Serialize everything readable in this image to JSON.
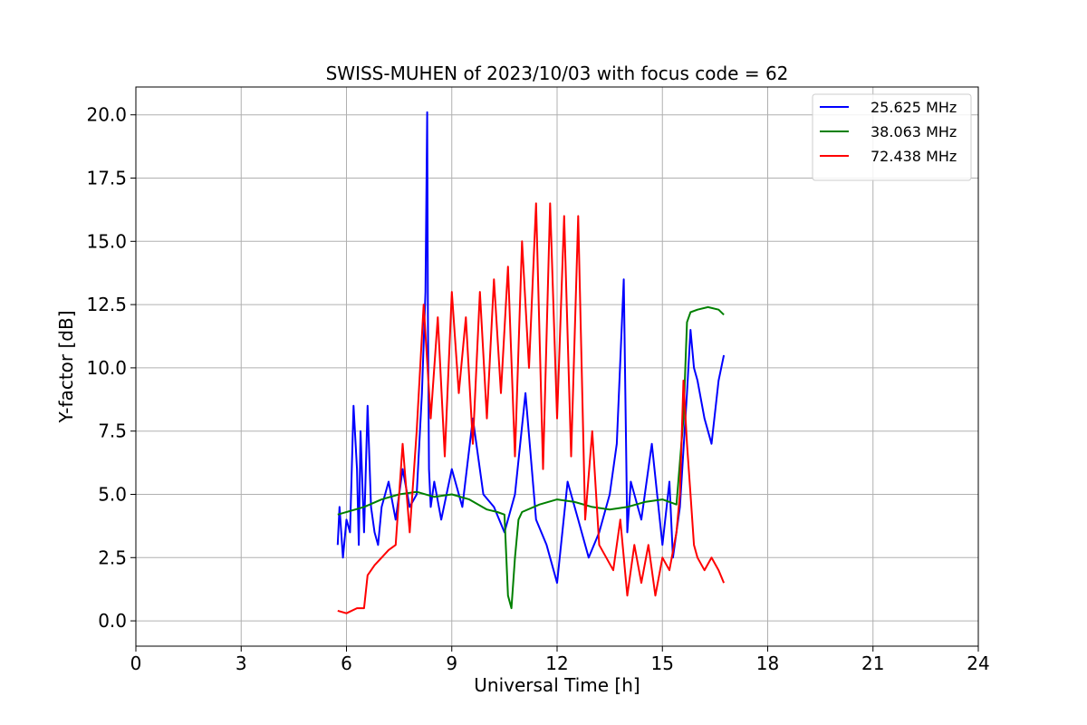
{
  "chart_data": {
    "type": "line",
    "title": "SWISS-MUHEN of 2023/10/03 with focus code = 62",
    "xlabel": "Universal Time [h]",
    "ylabel": "Y-factor [dB]",
    "xlim": [
      0,
      24
    ],
    "ylim": [
      -1,
      21.1
    ],
    "xticks": [
      0,
      3,
      6,
      9,
      12,
      15,
      18,
      21,
      24
    ],
    "xtick_labels": [
      "0",
      "3",
      "6",
      "9",
      "12",
      "15",
      "18",
      "21",
      "24"
    ],
    "yticks": [
      0,
      2.5,
      5,
      7.5,
      10,
      12.5,
      15,
      17.5,
      20
    ],
    "ytick_labels": [
      "0.0",
      "2.5",
      "5.0",
      "7.5",
      "10.0",
      "12.5",
      "15.0",
      "17.5",
      "20.0"
    ],
    "grid": true,
    "legend_position": "top-right",
    "series": [
      {
        "name": "25.625 MHz",
        "color": "#0000ff",
        "x": [
          5.75,
          5.8,
          5.9,
          6.0,
          6.1,
          6.2,
          6.3,
          6.35,
          6.4,
          6.5,
          6.6,
          6.7,
          6.8,
          6.9,
          7.0,
          7.2,
          7.4,
          7.6,
          7.8,
          8.0,
          8.15,
          8.25,
          8.3,
          8.32,
          8.35,
          8.4,
          8.5,
          8.7,
          9.0,
          9.3,
          9.6,
          9.9,
          10.2,
          10.5,
          10.8,
          11.1,
          11.4,
          11.7,
          12.0,
          12.3,
          12.6,
          12.9,
          13.2,
          13.5,
          13.7,
          13.9,
          14.0,
          14.1,
          14.4,
          14.7,
          15.0,
          15.2,
          15.3,
          15.5,
          15.7,
          15.8,
          15.9,
          16.0,
          16.2,
          16.4,
          16.6,
          16.75
        ],
        "y": [
          3.0,
          4.5,
          2.5,
          4.0,
          3.5,
          8.5,
          6.0,
          3.0,
          7.5,
          3.5,
          8.5,
          4.5,
          3.5,
          3.0,
          4.5,
          5.5,
          4.0,
          6.0,
          4.5,
          5.0,
          9.0,
          13.0,
          20.1,
          12.0,
          6.0,
          4.5,
          5.5,
          4.0,
          6.0,
          4.5,
          8.0,
          5.0,
          4.5,
          3.5,
          5.0,
          9.0,
          4.0,
          3.0,
          1.5,
          5.5,
          4.0,
          2.5,
          3.5,
          5.0,
          7.0,
          13.5,
          3.5,
          5.5,
          4.0,
          7.0,
          3.0,
          5.5,
          2.5,
          4.5,
          9.0,
          11.5,
          10.0,
          9.5,
          8.0,
          7.0,
          9.5,
          10.5
        ]
      },
      {
        "name": "38.063 MHz",
        "color": "#008000",
        "x": [
          5.75,
          6.0,
          6.5,
          7.0,
          7.5,
          8.0,
          8.5,
          9.0,
          9.5,
          10.0,
          10.3,
          10.5,
          10.6,
          10.7,
          10.8,
          10.9,
          11.0,
          11.5,
          12.0,
          12.5,
          13.0,
          13.5,
          14.0,
          14.5,
          15.0,
          15.4,
          15.6,
          15.7,
          15.8,
          16.0,
          16.3,
          16.6,
          16.75
        ],
        "y": [
          4.2,
          4.3,
          4.5,
          4.8,
          5.0,
          5.1,
          4.9,
          5.0,
          4.8,
          4.4,
          4.3,
          4.2,
          1.0,
          0.5,
          2.5,
          4.0,
          4.3,
          4.6,
          4.8,
          4.7,
          4.5,
          4.4,
          4.5,
          4.7,
          4.8,
          4.6,
          8.0,
          11.8,
          12.2,
          12.3,
          12.4,
          12.3,
          12.1
        ]
      },
      {
        "name": "72.438 MHz",
        "color": "#ff0000",
        "x": [
          5.75,
          6.0,
          6.3,
          6.5,
          6.6,
          6.8,
          7.0,
          7.2,
          7.4,
          7.6,
          7.8,
          8.0,
          8.2,
          8.4,
          8.6,
          8.8,
          9.0,
          9.2,
          9.4,
          9.6,
          9.8,
          10.0,
          10.2,
          10.4,
          10.6,
          10.8,
          11.0,
          11.2,
          11.4,
          11.6,
          11.8,
          12.0,
          12.2,
          12.4,
          12.6,
          12.8,
          13.0,
          13.2,
          13.4,
          13.6,
          13.8,
          14.0,
          14.2,
          14.4,
          14.6,
          14.8,
          15.0,
          15.2,
          15.4,
          15.5,
          15.6,
          15.7,
          15.8,
          15.9,
          16.0,
          16.2,
          16.4,
          16.6,
          16.75
        ],
        "y": [
          0.4,
          0.3,
          0.5,
          0.5,
          1.8,
          2.2,
          2.5,
          2.8,
          3.0,
          7.0,
          3.5,
          7.5,
          12.5,
          8.0,
          12.0,
          6.5,
          13.0,
          9.0,
          12.0,
          7.0,
          13.0,
          8.0,
          13.5,
          9.0,
          14.0,
          6.5,
          15.0,
          10.0,
          16.5,
          6.0,
          16.5,
          8.0,
          16.0,
          6.5,
          16.0,
          4.0,
          7.5,
          3.0,
          2.5,
          2.0,
          4.0,
          1.0,
          3.0,
          1.5,
          3.0,
          1.0,
          2.5,
          2.0,
          3.5,
          5.0,
          9.5,
          7.0,
          5.0,
          3.0,
          2.5,
          2.0,
          2.5,
          2.0,
          1.5
        ]
      }
    ]
  }
}
